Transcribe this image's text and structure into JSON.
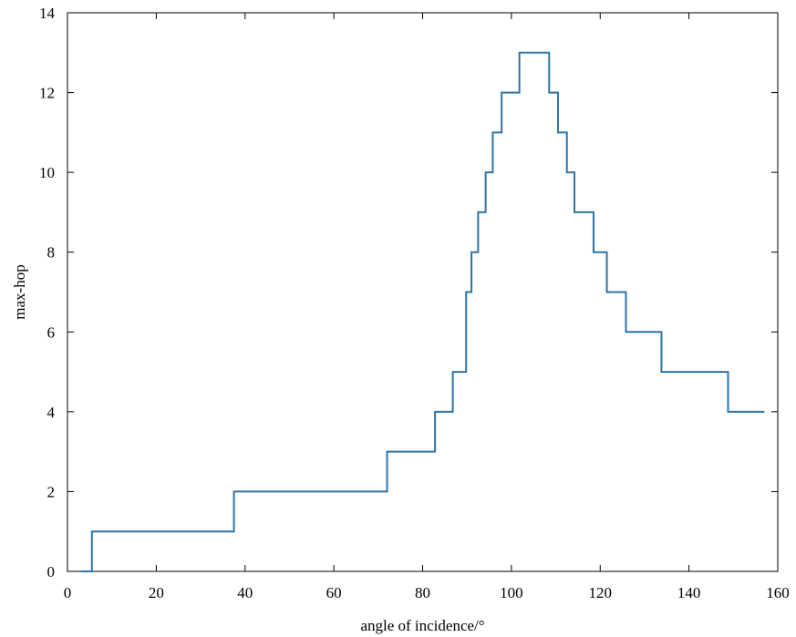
{
  "chart_data": {
    "type": "line",
    "title": "",
    "xlabel": "angle of incidence/°",
    "ylabel": "max-hop",
    "xlim": [
      0,
      160
    ],
    "ylim": [
      0,
      14
    ],
    "xticks": [
      "0",
      "20",
      "40",
      "60",
      "80",
      "100",
      "120",
      "140",
      "160"
    ],
    "yticks": [
      "0",
      "2",
      "4",
      "6",
      "8",
      "10",
      "12",
      "14"
    ],
    "grid": false,
    "legend": "none",
    "line_color": "#2e74a8",
    "series": [
      {
        "step": true,
        "x": [
          4.5,
          5.5,
          37.5,
          72,
          82.8,
          86.8,
          89.8,
          91,
          92.5,
          94.2,
          95.8,
          97.8,
          101.8,
          108.5,
          110.5,
          112.5,
          114.2,
          118.5,
          121.5,
          125.8,
          133.8,
          148.8,
          157
        ],
        "y": [
          0,
          1,
          2,
          3,
          4,
          5,
          7,
          8,
          9,
          10,
          11,
          12,
          13,
          12,
          11,
          10,
          9,
          8,
          7,
          6,
          5,
          4,
          4
        ],
        "x_start": 3,
        "y_start": 0
      }
    ]
  }
}
